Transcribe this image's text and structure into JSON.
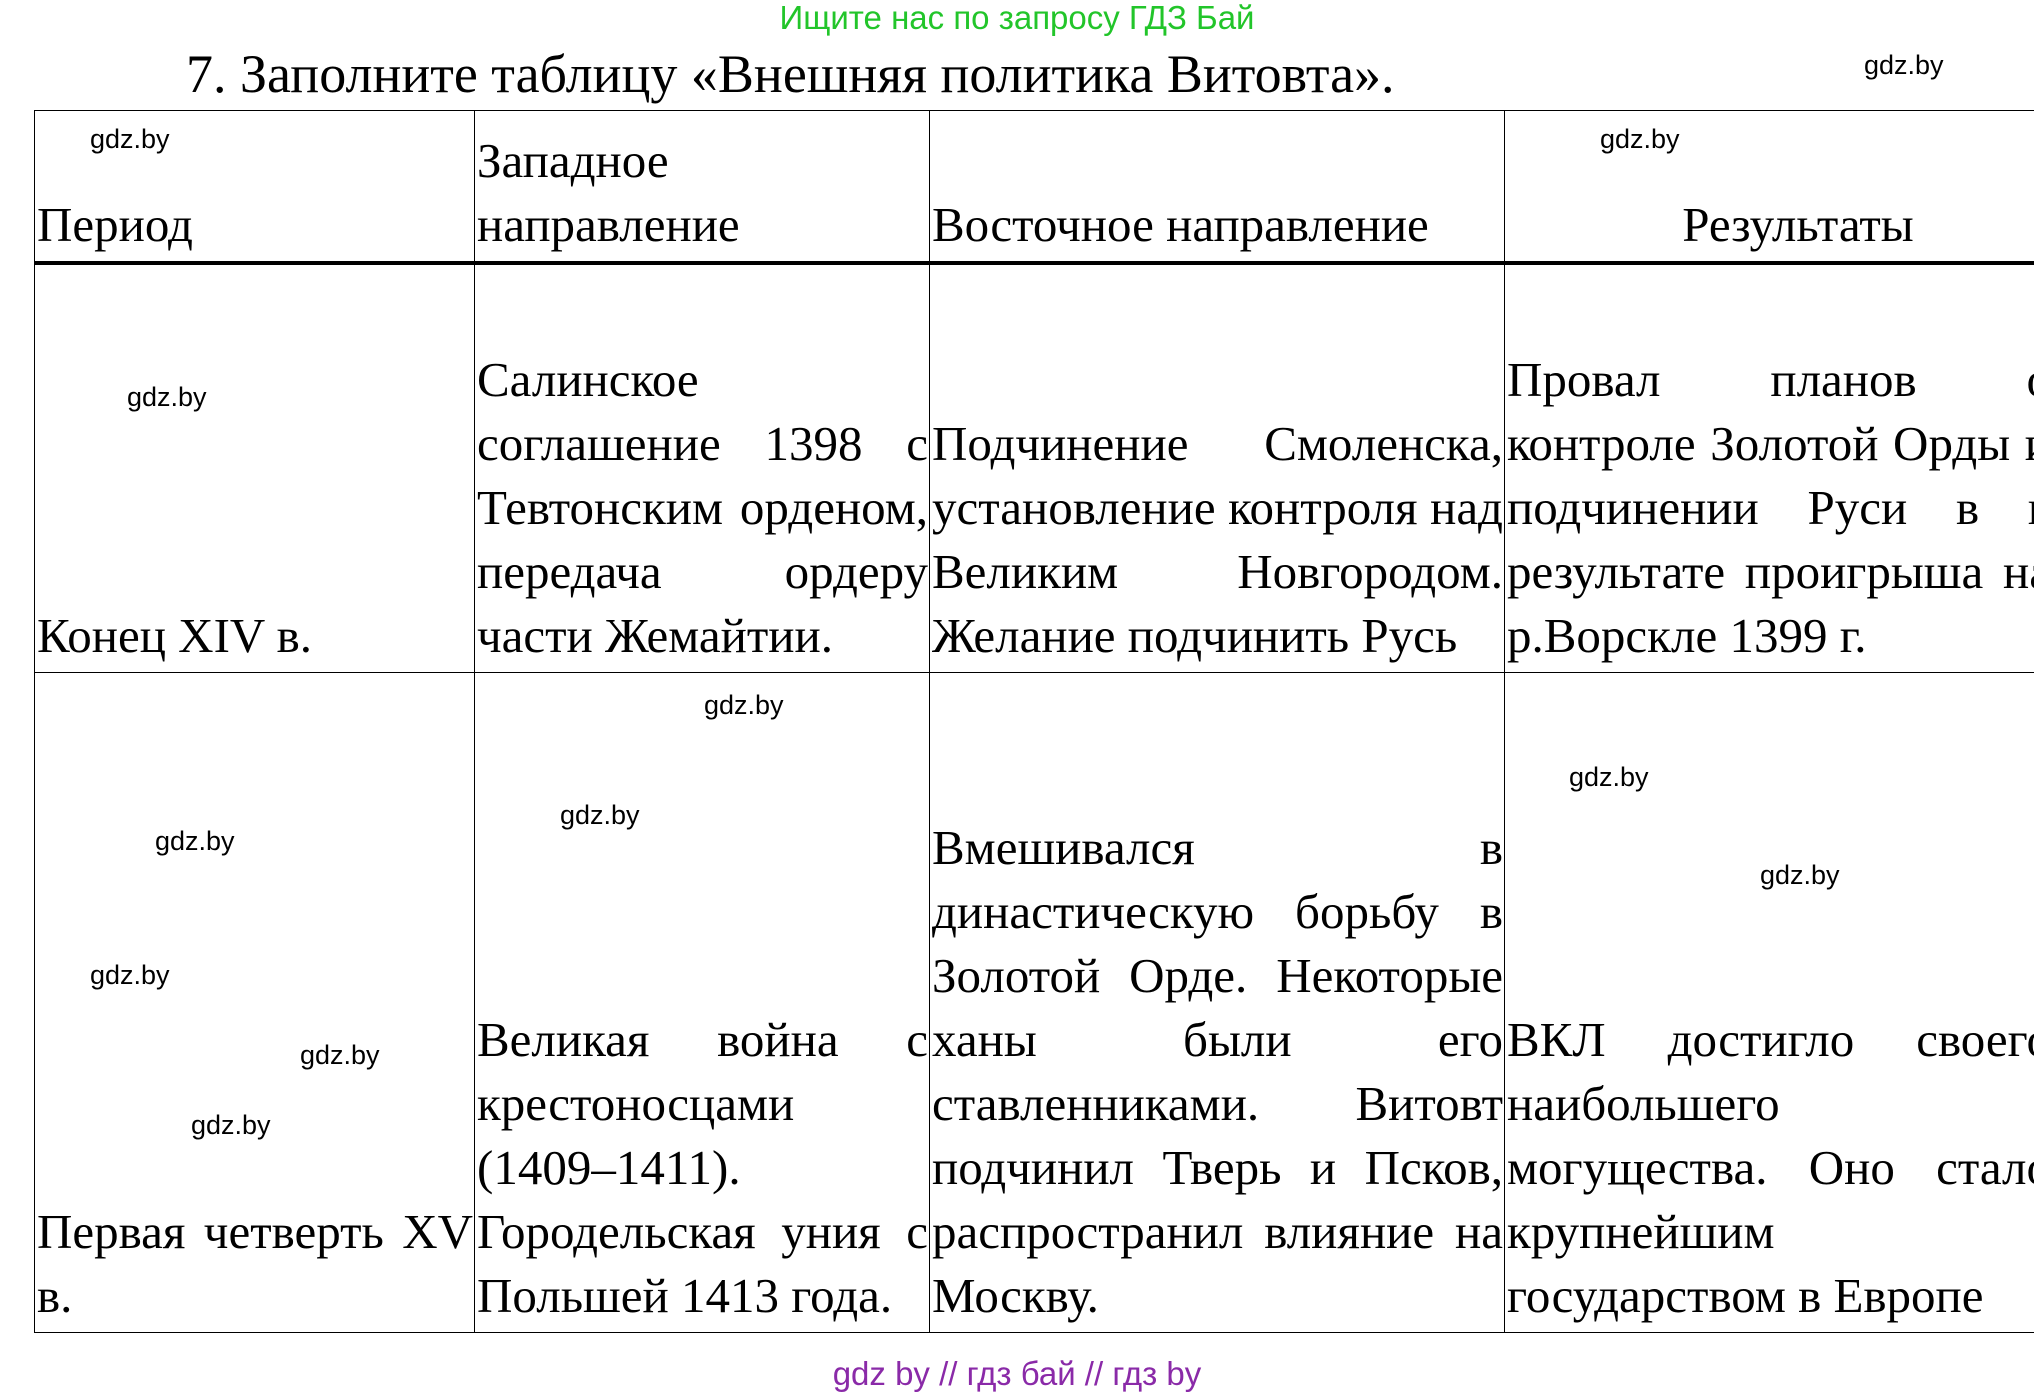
{
  "banner": "Ищите нас по запросу ГДЗ Бай",
  "title": "7. Заполните таблицу «Внешняя политика Витовта».",
  "watermark": "gdz.by",
  "table": {
    "headers": [
      "Период",
      "Западное направление",
      "Восточное направление",
      "Результаты"
    ],
    "rows": [
      [
        "Конец XIV в.",
        "Салинское соглашение 1398 с Тевтонским орденом, передача ордеру части Жемайтии.",
        "Подчинение Смоленска, установление контроля над Великим Новгородом. Желание подчинить Русь",
        "Провал планов о контроле Золотой Орды и подчинении Руси в в результате проигрыша на р.Ворскле 1399 г."
      ],
      [
        "Первая четверть XV в.",
        "Великая война с крестоносцами (1409–1411). Городельская уния с Польшей 1413 года.",
        "Вмешивался в династическую борьбу в Золотой Орде. Некоторые ханы были его ставленниками. Витовт подчинил Тверь и Псков, распространил влияние на Москву.",
        "ВКЛ достигло своего наибольшего могущества. Оно стало крупнейшим государством в Европе"
      ]
    ]
  },
  "footer": "gdz by  //  гдз бай  //  гдз by"
}
